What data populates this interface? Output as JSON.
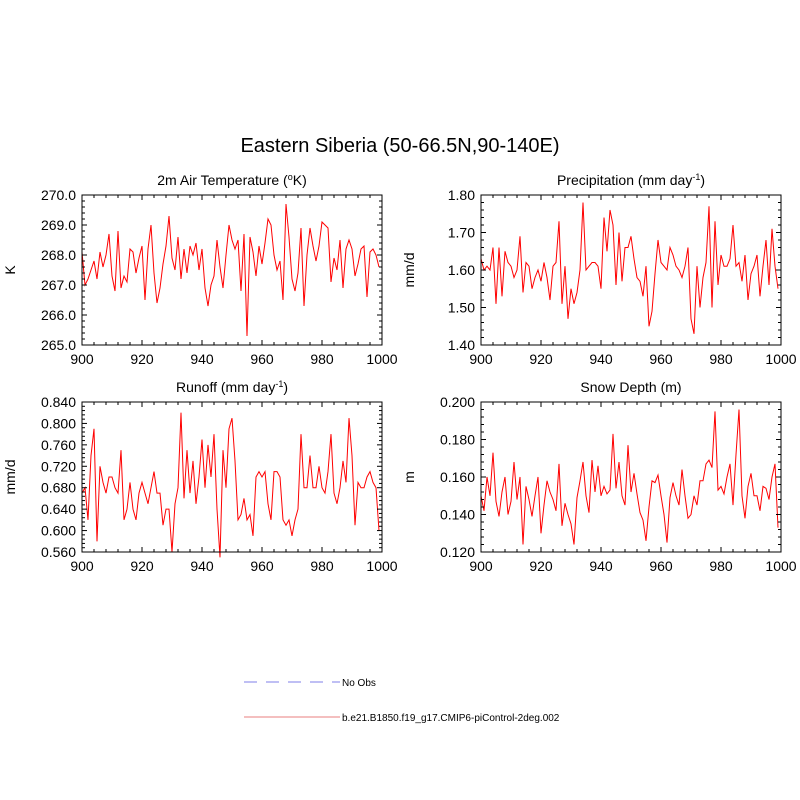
{
  "figure_title": "Eastern Siberia (50-66.5N,90-140E)",
  "legend": [
    {
      "label": "No Obs",
      "color": "#9999ee",
      "style": "dashed"
    },
    {
      "label": "b.e21.B1850.f19_g17.CMIP6-piControl-2deg.002",
      "color": "#ee9999",
      "style": "solid"
    }
  ],
  "chart_data": [
    {
      "type": "line",
      "title": "2m Air Temperature (",
      "title_sup": "o",
      "title_post": "K)",
      "ylabel": "K",
      "xlim": [
        900,
        1000
      ],
      "ylim": [
        265.0,
        270.0
      ],
      "xticks": [
        900,
        920,
        940,
        960,
        980,
        1000
      ],
      "yticks": [
        265.0,
        266.0,
        267.0,
        268.0,
        269.0,
        270.0
      ],
      "ytick_labels": [
        "265.0",
        "266.0",
        "267.0",
        "268.0",
        "269.0",
        "270.0"
      ],
      "series": [
        {
          "name": "b.e21.B1850.f19_g17.CMIP6-piControl-2deg.002",
          "color": "#ff0000",
          "x_start": 900,
          "values": [
            268.1,
            267.0,
            267.2,
            267.5,
            267.8,
            267.2,
            268.1,
            267.6,
            268.0,
            268.7,
            267.3,
            266.8,
            268.8,
            266.9,
            267.3,
            267.1,
            268.2,
            268.1,
            267.4,
            267.9,
            268.3,
            266.5,
            268.2,
            269.0,
            267.4,
            266.4,
            266.9,
            267.7,
            268.3,
            269.3,
            267.9,
            267.5,
            268.6,
            267.2,
            268.2,
            267.4,
            268.3,
            268.0,
            268.4,
            267.5,
            268.2,
            266.9,
            266.3,
            267.0,
            267.3,
            268.5,
            267.6,
            266.9,
            268.0,
            269.0,
            268.5,
            268.2,
            268.5,
            266.8,
            268.7,
            265.3,
            268.6,
            268.1,
            267.3,
            268.3,
            267.7,
            268.4,
            269.2,
            269.0,
            268.0,
            267.5,
            267.8,
            266.5,
            269.7,
            268.6,
            267.2,
            266.8,
            267.4,
            268.9,
            266.3,
            268.0,
            268.9,
            268.3,
            267.8,
            268.3,
            269.1,
            269.0,
            268.9,
            267.1,
            267.9,
            267.5,
            268.5,
            266.9,
            268.2,
            268.5,
            268.2,
            267.3,
            267.7,
            268.2,
            268.3,
            266.6,
            268.1,
            268.2,
            268.0,
            267.6
          ]
        }
      ]
    },
    {
      "type": "line",
      "title": "Precipitation (mm day",
      "title_sup": "-1",
      "title_post": ")",
      "ylabel": "mm/d",
      "xlim": [
        900,
        1000
      ],
      "ylim": [
        1.4,
        1.8
      ],
      "xticks": [
        900,
        920,
        940,
        960,
        980,
        1000
      ],
      "yticks": [
        1.4,
        1.5,
        1.6,
        1.7,
        1.8
      ],
      "ytick_labels": [
        "1.40",
        "1.50",
        "1.60",
        "1.70",
        "1.80"
      ],
      "series": [
        {
          "name": "b.e21.B1850.f19_g17.CMIP6-piControl-2deg.002",
          "color": "#ff0000",
          "x_start": 900,
          "values": [
            1.63,
            1.6,
            1.61,
            1.6,
            1.66,
            1.51,
            1.66,
            1.53,
            1.65,
            1.62,
            1.61,
            1.58,
            1.6,
            1.69,
            1.54,
            1.62,
            1.61,
            1.55,
            1.58,
            1.6,
            1.57,
            1.62,
            1.58,
            1.52,
            1.61,
            1.62,
            1.73,
            1.51,
            1.61,
            1.47,
            1.55,
            1.51,
            1.54,
            1.6,
            1.78,
            1.6,
            1.61,
            1.62,
            1.62,
            1.61,
            1.55,
            1.74,
            1.65,
            1.76,
            1.72,
            1.56,
            1.7,
            1.57,
            1.66,
            1.66,
            1.69,
            1.63,
            1.58,
            1.57,
            1.53,
            1.61,
            1.45,
            1.49,
            1.59,
            1.68,
            1.62,
            1.61,
            1.6,
            1.66,
            1.64,
            1.61,
            1.6,
            1.58,
            1.61,
            1.66,
            1.47,
            1.43,
            1.61,
            1.5,
            1.58,
            1.62,
            1.77,
            1.5,
            1.73,
            1.56,
            1.64,
            1.61,
            1.61,
            1.63,
            1.72,
            1.61,
            1.62,
            1.57,
            1.64,
            1.52,
            1.59,
            1.61,
            1.64,
            1.53,
            1.61,
            1.68,
            1.56,
            1.71,
            1.61,
            1.55
          ]
        }
      ]
    },
    {
      "type": "line",
      "title": "Runoff (mm day",
      "title_sup": "-1",
      "title_post": ")",
      "ylabel": "mm/d",
      "xlim": [
        900,
        1000
      ],
      "ylim": [
        0.56,
        0.84
      ],
      "xticks": [
        900,
        920,
        940,
        960,
        980,
        1000
      ],
      "yticks": [
        0.56,
        0.6,
        0.64,
        0.68,
        0.72,
        0.76,
        0.8,
        0.84
      ],
      "ytick_labels": [
        "0.560",
        "0.600",
        "0.640",
        "0.680",
        "0.720",
        "0.760",
        "0.800",
        "0.840"
      ],
      "series": [
        {
          "name": "b.e21.B1850.f19_g17.CMIP6-piControl-2deg.002",
          "color": "#ff0000",
          "x_start": 900,
          "values": [
            0.67,
            0.68,
            0.62,
            0.74,
            0.79,
            0.58,
            0.72,
            0.69,
            0.67,
            0.7,
            0.7,
            0.68,
            0.67,
            0.75,
            0.62,
            0.64,
            0.69,
            0.64,
            0.62,
            0.67,
            0.69,
            0.67,
            0.65,
            0.68,
            0.71,
            0.67,
            0.67,
            0.61,
            0.64,
            0.64,
            0.56,
            0.65,
            0.68,
            0.82,
            0.66,
            0.75,
            0.67,
            0.73,
            0.65,
            0.7,
            0.77,
            0.68,
            0.76,
            0.7,
            0.78,
            0.64,
            0.55,
            0.75,
            0.68,
            0.79,
            0.81,
            0.73,
            0.62,
            0.63,
            0.66,
            0.62,
            0.63,
            0.59,
            0.7,
            0.71,
            0.7,
            0.71,
            0.65,
            0.62,
            0.71,
            0.71,
            0.7,
            0.62,
            0.61,
            0.62,
            0.59,
            0.62,
            0.64,
            0.78,
            0.68,
            0.68,
            0.74,
            0.68,
            0.68,
            0.72,
            0.68,
            0.67,
            0.71,
            0.78,
            0.67,
            0.65,
            0.68,
            0.73,
            0.69,
            0.81,
            0.74,
            0.61,
            0.69,
            0.68,
            0.68,
            0.7,
            0.71,
            0.69,
            0.68,
            0.6
          ]
        }
      ]
    },
    {
      "type": "line",
      "title": "Snow Depth (m)",
      "title_sup": "",
      "title_post": "",
      "ylabel": "m",
      "xlim": [
        900,
        1000
      ],
      "ylim": [
        0.12,
        0.2
      ],
      "xticks": [
        900,
        920,
        940,
        960,
        980,
        1000
      ],
      "yticks": [
        0.12,
        0.14,
        0.16,
        0.18,
        0.2
      ],
      "ytick_labels": [
        "0.120",
        "0.140",
        "0.160",
        "0.180",
        "0.200"
      ],
      "series": [
        {
          "name": "b.e21.B1850.f19_g17.CMIP6-piControl-2deg.002",
          "color": "#ff0000",
          "x_start": 900,
          "values": [
            0.15,
            0.142,
            0.16,
            0.15,
            0.173,
            0.147,
            0.139,
            0.152,
            0.16,
            0.14,
            0.147,
            0.168,
            0.148,
            0.16,
            0.124,
            0.155,
            0.148,
            0.139,
            0.15,
            0.16,
            0.13,
            0.145,
            0.158,
            0.152,
            0.148,
            0.142,
            0.167,
            0.134,
            0.146,
            0.14,
            0.135,
            0.124,
            0.149,
            0.158,
            0.168,
            0.15,
            0.141,
            0.169,
            0.152,
            0.166,
            0.15,
            0.155,
            0.151,
            0.153,
            0.183,
            0.154,
            0.168,
            0.15,
            0.145,
            0.177,
            0.152,
            0.162,
            0.151,
            0.141,
            0.137,
            0.126,
            0.144,
            0.158,
            0.157,
            0.161,
            0.15,
            0.14,
            0.125,
            0.149,
            0.157,
            0.15,
            0.145,
            0.164,
            0.15,
            0.138,
            0.14,
            0.15,
            0.145,
            0.158,
            0.158,
            0.167,
            0.169,
            0.165,
            0.195,
            0.153,
            0.155,
            0.151,
            0.16,
            0.167,
            0.145,
            0.172,
            0.196,
            0.15,
            0.138,
            0.155,
            0.162,
            0.15,
            0.15,
            0.142,
            0.155,
            0.154,
            0.148,
            0.16,
            0.167,
            0.133
          ]
        }
      ]
    }
  ]
}
